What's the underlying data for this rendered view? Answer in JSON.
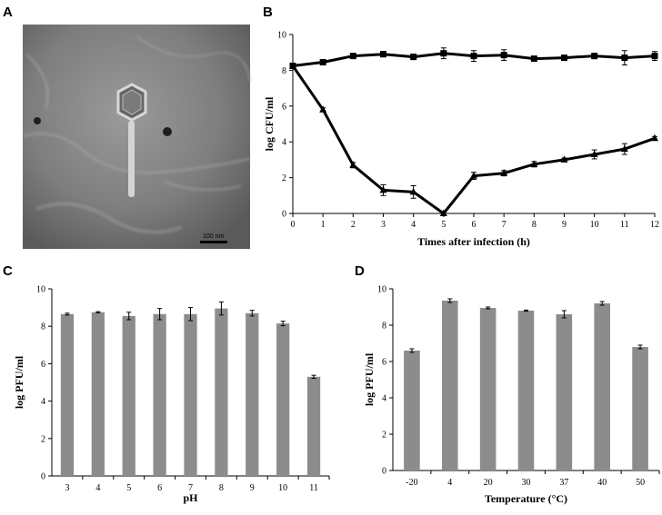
{
  "figure": {
    "panel_labels": [
      "A",
      "B",
      "C",
      "D"
    ],
    "micrograph": {
      "scale_bar_label": "100 nm"
    }
  },
  "chart_data": [
    {
      "panel": "B",
      "type": "line",
      "title": "",
      "xlabel": "Times after infection (h)",
      "ylabel": "log CFU/ml",
      "x": [
        0,
        1,
        2,
        3,
        4,
        5,
        6,
        7,
        8,
        9,
        10,
        11,
        12
      ],
      "xlim": [
        0,
        12
      ],
      "ylim": [
        0,
        10
      ],
      "yticks": [
        0,
        2,
        4,
        6,
        8,
        10
      ],
      "xticks": [
        0,
        1,
        2,
        3,
        4,
        5,
        6,
        7,
        8,
        9,
        10,
        11,
        12
      ],
      "grid": false,
      "series": [
        {
          "marker": "square",
          "values": [
            8.25,
            8.45,
            8.8,
            8.9,
            8.75,
            8.95,
            8.8,
            8.85,
            8.65,
            8.7,
            8.8,
            8.7,
            8.8
          ],
          "errors": [
            0.1,
            0.1,
            0.1,
            0.15,
            0.15,
            0.3,
            0.3,
            0.3,
            0.1,
            0.1,
            0.15,
            0.4,
            0.25
          ],
          "color": "#000000"
        },
        {
          "marker": "triangle",
          "values": [
            8.25,
            5.8,
            2.7,
            1.3,
            1.2,
            0.0,
            2.1,
            2.25,
            2.75,
            3.0,
            3.3,
            3.6,
            4.2
          ],
          "errors": [
            0.1,
            0.1,
            0.15,
            0.3,
            0.35,
            0.1,
            0.2,
            0.15,
            0.15,
            0.1,
            0.25,
            0.3,
            0.1
          ],
          "color": "#000000"
        }
      ]
    },
    {
      "panel": "C",
      "type": "bar",
      "title": "",
      "xlabel": "pH",
      "ylabel": "log PFU/ml",
      "categories": [
        "3",
        "4",
        "5",
        "6",
        "7",
        "8",
        "9",
        "10",
        "11"
      ],
      "values": [
        8.65,
        8.75,
        8.55,
        8.65,
        8.65,
        8.95,
        8.7,
        8.15,
        5.3
      ],
      "errors": [
        0.05,
        0.03,
        0.2,
        0.3,
        0.35,
        0.35,
        0.15,
        0.12,
        0.08
      ],
      "ylim": [
        0,
        10
      ],
      "yticks": [
        0,
        2,
        4,
        6,
        8,
        10
      ],
      "grid": false,
      "bar_color": "#8c8c8c"
    },
    {
      "panel": "D",
      "type": "bar",
      "title": "",
      "xlabel": "Temperature (°C)",
      "ylabel": "log PFU/ml",
      "categories": [
        "-20",
        "4",
        "20",
        "30",
        "37",
        "40",
        "50"
      ],
      "values": [
        6.6,
        9.35,
        8.95,
        8.8,
        8.6,
        9.2,
        6.8
      ],
      "errors": [
        0.1,
        0.1,
        0.05,
        0.03,
        0.2,
        0.1,
        0.1
      ],
      "ylim": [
        0,
        10
      ],
      "yticks": [
        0,
        2,
        4,
        6,
        8,
        10
      ],
      "grid": false,
      "bar_color": "#8c8c8c"
    }
  ]
}
